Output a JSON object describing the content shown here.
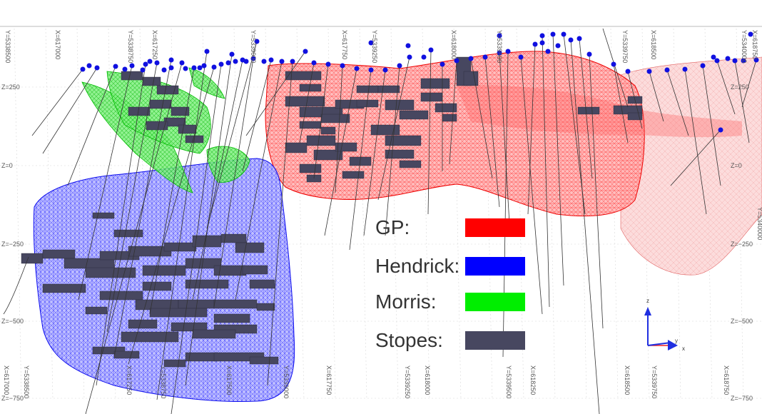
{
  "legend": {
    "items": [
      {
        "key": "gp",
        "label": "GP:",
        "color": "#ff0000"
      },
      {
        "key": "hendrick",
        "label": "Hendrick:",
        "color": "#0000ff"
      },
      {
        "key": "morris",
        "label": "Morris:",
        "color": "#00ee00"
      },
      {
        "key": "stopes",
        "label": "Stopes:",
        "color": "#474760"
      }
    ]
  },
  "axes": {
    "z_left": [
      "Z=250",
      "Z=0",
      "Z=−250",
      "Z=−500",
      "Z=−750"
    ],
    "z_right": [
      "Z=250",
      "Z=0",
      "Z=−250",
      "Z=−500",
      "Z=−750"
    ],
    "top": [
      "Y=5338500",
      "X=617000",
      "Y=5338750",
      "X=617250",
      "Y=5339000",
      "X=617750",
      "Y=5339250",
      "X=618000",
      "Y=5339500",
      "Y=5339750",
      "X=618500",
      "Y=5340000",
      "X=618750"
    ],
    "bottom": [
      "X=617000",
      "Y=5338500",
      "X=617250",
      "Y=5338750",
      "X=617500",
      "Y=5339000",
      "X=617750",
      "Y=5339250",
      "X=618000",
      "Y=5339500",
      "X=618250",
      "X=618500",
      "Y=5339750",
      "X=618750"
    ],
    "right_mid": "Y=5340000"
  },
  "triad": {
    "z": "z",
    "y": "y",
    "x": "x"
  },
  "colors": {
    "hole_collar": "#1010e0",
    "drill_trace": "#333333",
    "grid": "#cfcfcf"
  }
}
